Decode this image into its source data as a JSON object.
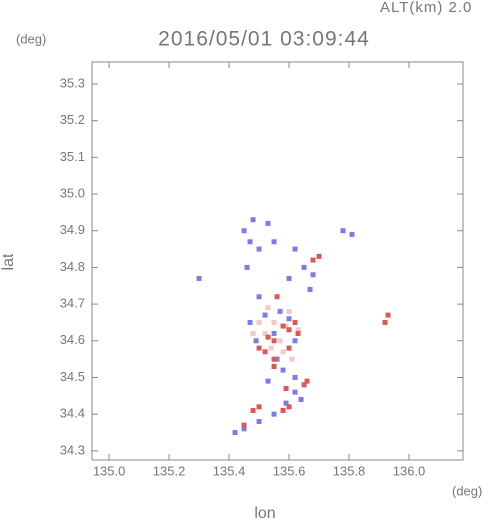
{
  "chart_data": {
    "type": "scatter",
    "title": "2016/05/01 03:09:44",
    "annotation": "ALT(km) 2.0",
    "x_unit": "(deg)",
    "y_unit": "(deg)",
    "x_label": "lon",
    "y_label": "lat",
    "xlim": [
      134.943,
      136.18
    ],
    "ylim": [
      34.275,
      35.36
    ],
    "xticks": [
      {
        "value": 135,
        "label": "135.0"
      },
      135.2,
      135.4,
      135.6,
      135.8,
      {
        "value": 136,
        "label": "136.0"
      }
    ],
    "yticks": [
      34.3,
      34.4,
      34.5,
      34.6,
      34.7,
      34.8,
      34.9,
      {
        "value": 35,
        "label": "35.0"
      },
      35.1,
      35.2,
      35.3
    ],
    "series": [
      {
        "color": "#f4c8c8",
        "x": [
          135.55,
          135.6,
          135.52,
          135.58,
          135.5,
          135.54,
          135.61,
          135.57,
          135.53,
          135.63,
          135.48,
          135.59
        ],
        "y": [
          34.65,
          34.68,
          34.62,
          34.57,
          34.65,
          34.58,
          34.55,
          34.6,
          34.69,
          34.63,
          34.62,
          34.64
        ]
      },
      {
        "color": "#7b7bea",
        "x": [
          135.45,
          135.48,
          135.53,
          135.47,
          135.5,
          135.46,
          135.55,
          135.62,
          135.68,
          135.65,
          135.6,
          135.67,
          135.78,
          135.81,
          135.3,
          135.5,
          135.47,
          135.52,
          135.57,
          135.6,
          135.55,
          135.49,
          135.62,
          135.58,
          135.62,
          135.53,
          135.64,
          135.59,
          135.55,
          135.5,
          135.45,
          135.42,
          135.62,
          135.56
        ],
        "y": [
          34.9,
          34.93,
          34.92,
          34.87,
          34.85,
          34.8,
          34.87,
          34.85,
          34.78,
          34.8,
          34.77,
          34.74,
          34.9,
          34.89,
          34.77,
          34.72,
          34.65,
          34.67,
          34.68,
          34.66,
          34.62,
          34.6,
          34.6,
          34.52,
          34.5,
          34.49,
          34.44,
          34.43,
          34.4,
          34.38,
          34.36,
          34.35,
          34.46,
          34.55
        ]
      },
      {
        "color": "#e05555",
        "x": [
          135.6,
          135.58,
          135.55,
          135.5,
          135.52,
          135.62,
          135.6,
          135.55,
          135.65,
          135.66,
          135.6,
          135.58,
          135.48,
          135.5,
          135.93,
          135.92,
          135.56,
          135.7,
          135.68,
          135.45,
          135.55,
          135.53,
          135.59,
          135.63
        ],
        "y": [
          34.63,
          34.64,
          34.6,
          34.58,
          34.57,
          34.65,
          34.58,
          34.53,
          34.48,
          34.49,
          34.42,
          34.41,
          34.41,
          34.42,
          34.67,
          34.65,
          34.72,
          34.83,
          34.82,
          34.37,
          34.55,
          34.61,
          34.47,
          34.62
        ]
      }
    ]
  }
}
